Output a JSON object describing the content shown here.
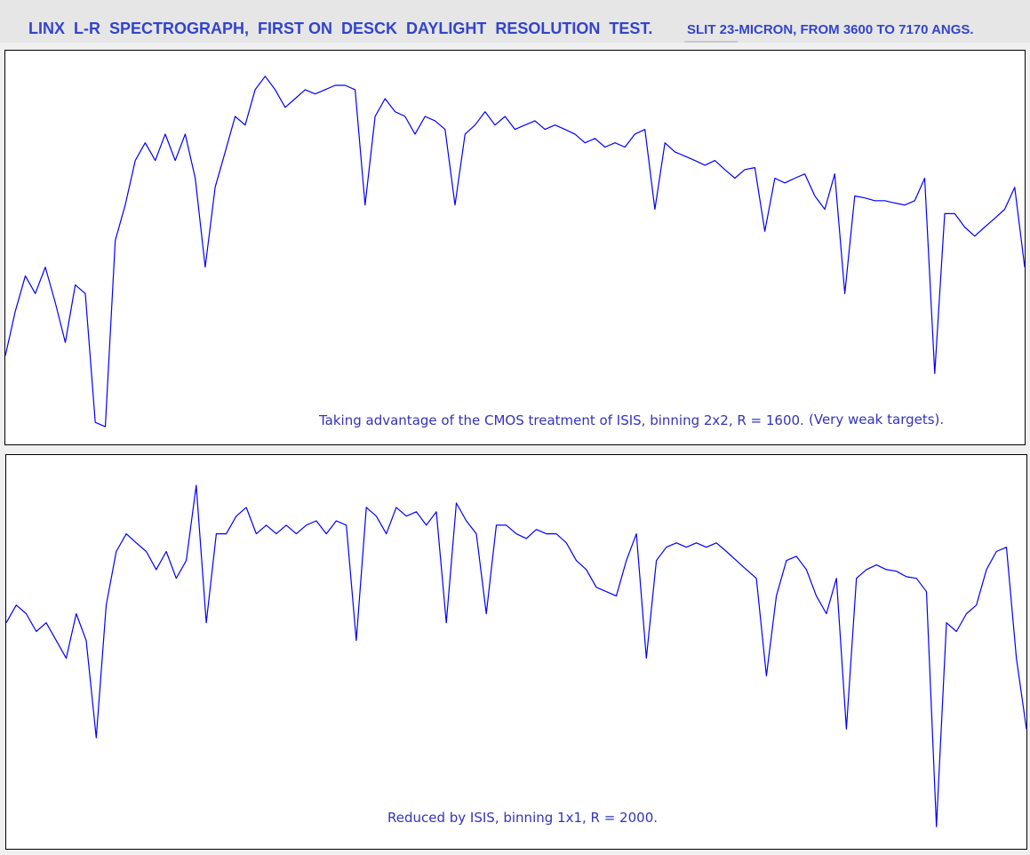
{
  "header": {
    "title": "LINX  L-R  SPECTROGRAPH,  FIRST ON  DESCK  DAYLIGHT  RESOLUTION  TEST.",
    "subtitle": "SLIT 23-MICRON, FROM 3600 TO 7170 ANGS."
  },
  "chart_data": [
    {
      "type": "line",
      "color": "#0000ff",
      "xlim": [
        3600,
        7170
      ],
      "ylim": [
        0,
        100
      ],
      "x": [
        3600,
        3635,
        3670,
        3705,
        3740,
        3775,
        3810,
        3845,
        3880,
        3915,
        3950,
        3985,
        4020,
        4055,
        4090,
        4125,
        4160,
        4195,
        4230,
        4265,
        4300,
        4335,
        4370,
        4405,
        4440,
        4475,
        4510,
        4545,
        4580,
        4615,
        4650,
        4685,
        4720,
        4755,
        4790,
        4825,
        4860,
        4895,
        4930,
        4965,
        5000,
        5035,
        5070,
        5105,
        5140,
        5175,
        5210,
        5245,
        5280,
        5315,
        5350,
        5385,
        5420,
        5455,
        5490,
        5525,
        5560,
        5595,
        5630,
        5665,
        5700,
        5735,
        5770,
        5805,
        5840,
        5875,
        5910,
        5945,
        5980,
        6015,
        6050,
        6085,
        6120,
        6155,
        6190,
        6225,
        6260,
        6295,
        6330,
        6365,
        6400,
        6435,
        6470,
        6505,
        6540,
        6575,
        6610,
        6645,
        6680,
        6715,
        6750,
        6785,
        6820,
        6855,
        6890,
        6925,
        6960,
        6995,
        7030,
        7065,
        7100,
        7135,
        7170
      ],
      "values": [
        22.5,
        33.8,
        42.8,
        38.3,
        45,
        36,
        25.9,
        40.5,
        38.3,
        5.6,
        4.5,
        51.8,
        60.8,
        72.1,
        76.6,
        72.1,
        78.8,
        72.1,
        78.8,
        67.6,
        45,
        65.3,
        74.3,
        83.3,
        81.1,
        90.1,
        93.5,
        90.1,
        85.6,
        87.8,
        90.1,
        89,
        90.1,
        91.2,
        91.2,
        90.1,
        60.8,
        83.3,
        87.8,
        84.5,
        83.3,
        78.8,
        83.3,
        82.2,
        80,
        60.8,
        78.8,
        81.1,
        84.5,
        81.1,
        83.3,
        80,
        81.1,
        82.2,
        80,
        81.1,
        80,
        78.8,
        76.6,
        77.7,
        75.5,
        76.6,
        75.5,
        78.8,
        80,
        59.7,
        76.6,
        74.3,
        73.2,
        72.1,
        70.9,
        72.1,
        69.8,
        67.6,
        69.8,
        70.3,
        54.1,
        67.6,
        66.4,
        67.6,
        68.7,
        63.1,
        59.7,
        68.7,
        38.3,
        63.1,
        62.6,
        61.9,
        61.9,
        61.3,
        60.8,
        61.9,
        67.6,
        18,
        58.6,
        58.6,
        55.2,
        52.9,
        55.2,
        57.4,
        59.7,
        65.3,
        45
      ],
      "annotations": [
        "Taking advantage of the CMOS treatment of ISIS, binning 2x2, R = 1600.",
        "(Very weak targets)."
      ]
    },
    {
      "type": "line",
      "color": "#0000ff",
      "xlim": [
        3600,
        7170
      ],
      "ylim": [
        0,
        100
      ],
      "x": [
        3600,
        3635,
        3670,
        3705,
        3740,
        3775,
        3810,
        3845,
        3880,
        3915,
        3950,
        3985,
        4020,
        4055,
        4090,
        4125,
        4160,
        4195,
        4230,
        4265,
        4300,
        4335,
        4370,
        4405,
        4440,
        4475,
        4510,
        4545,
        4580,
        4615,
        4650,
        4685,
        4720,
        4755,
        4790,
        4825,
        4860,
        4895,
        4930,
        4965,
        5000,
        5035,
        5070,
        5105,
        5140,
        5175,
        5210,
        5245,
        5280,
        5315,
        5350,
        5385,
        5420,
        5455,
        5490,
        5525,
        5560,
        5595,
        5630,
        5665,
        5700,
        5735,
        5770,
        5805,
        5840,
        5875,
        5910,
        5945,
        5980,
        6015,
        6050,
        6085,
        6120,
        6155,
        6190,
        6225,
        6260,
        6295,
        6330,
        6365,
        6400,
        6435,
        6470,
        6505,
        6540,
        6575,
        6610,
        6645,
        6680,
        6715,
        6750,
        6785,
        6820,
        6855,
        6890,
        6925,
        6960,
        6995,
        7030,
        7065,
        7100,
        7135,
        7170
      ],
      "values": [
        57.4,
        61.9,
        59.7,
        55.2,
        57.4,
        52.9,
        48.4,
        59.7,
        52.9,
        28.2,
        61.9,
        75.5,
        80,
        77.7,
        75.5,
        70.9,
        75.5,
        68.7,
        73.2,
        92.3,
        57.4,
        80,
        80,
        84.5,
        86.7,
        80,
        82.2,
        80,
        82.2,
        80,
        82.2,
        83.3,
        80,
        83.3,
        82.2,
        52.9,
        86.7,
        84.5,
        80,
        86.7,
        84.5,
        85.6,
        82.2,
        85.6,
        57.4,
        87.8,
        83.3,
        80,
        59.7,
        82.2,
        82.2,
        80,
        78.8,
        81.1,
        80,
        80,
        77.7,
        73.2,
        70.9,
        66.4,
        65.3,
        64.2,
        73.2,
        80,
        48.4,
        73.2,
        76.6,
        77.7,
        76.6,
        77.7,
        76.6,
        77.7,
        75.5,
        73.2,
        70.9,
        68.7,
        43.9,
        64.2,
        73.2,
        74.3,
        70.9,
        64.2,
        59.7,
        68.7,
        30.4,
        68.7,
        70.9,
        72.1,
        70.9,
        70.5,
        69.1,
        68.7,
        65.3,
        5.6,
        57.4,
        55.2,
        59.7,
        61.9,
        70.9,
        75.5,
        76.6,
        48.4,
        30.4
      ],
      "annotations": [
        "Reduced by ISIS, binning 1x1, R = 2000."
      ]
    }
  ]
}
